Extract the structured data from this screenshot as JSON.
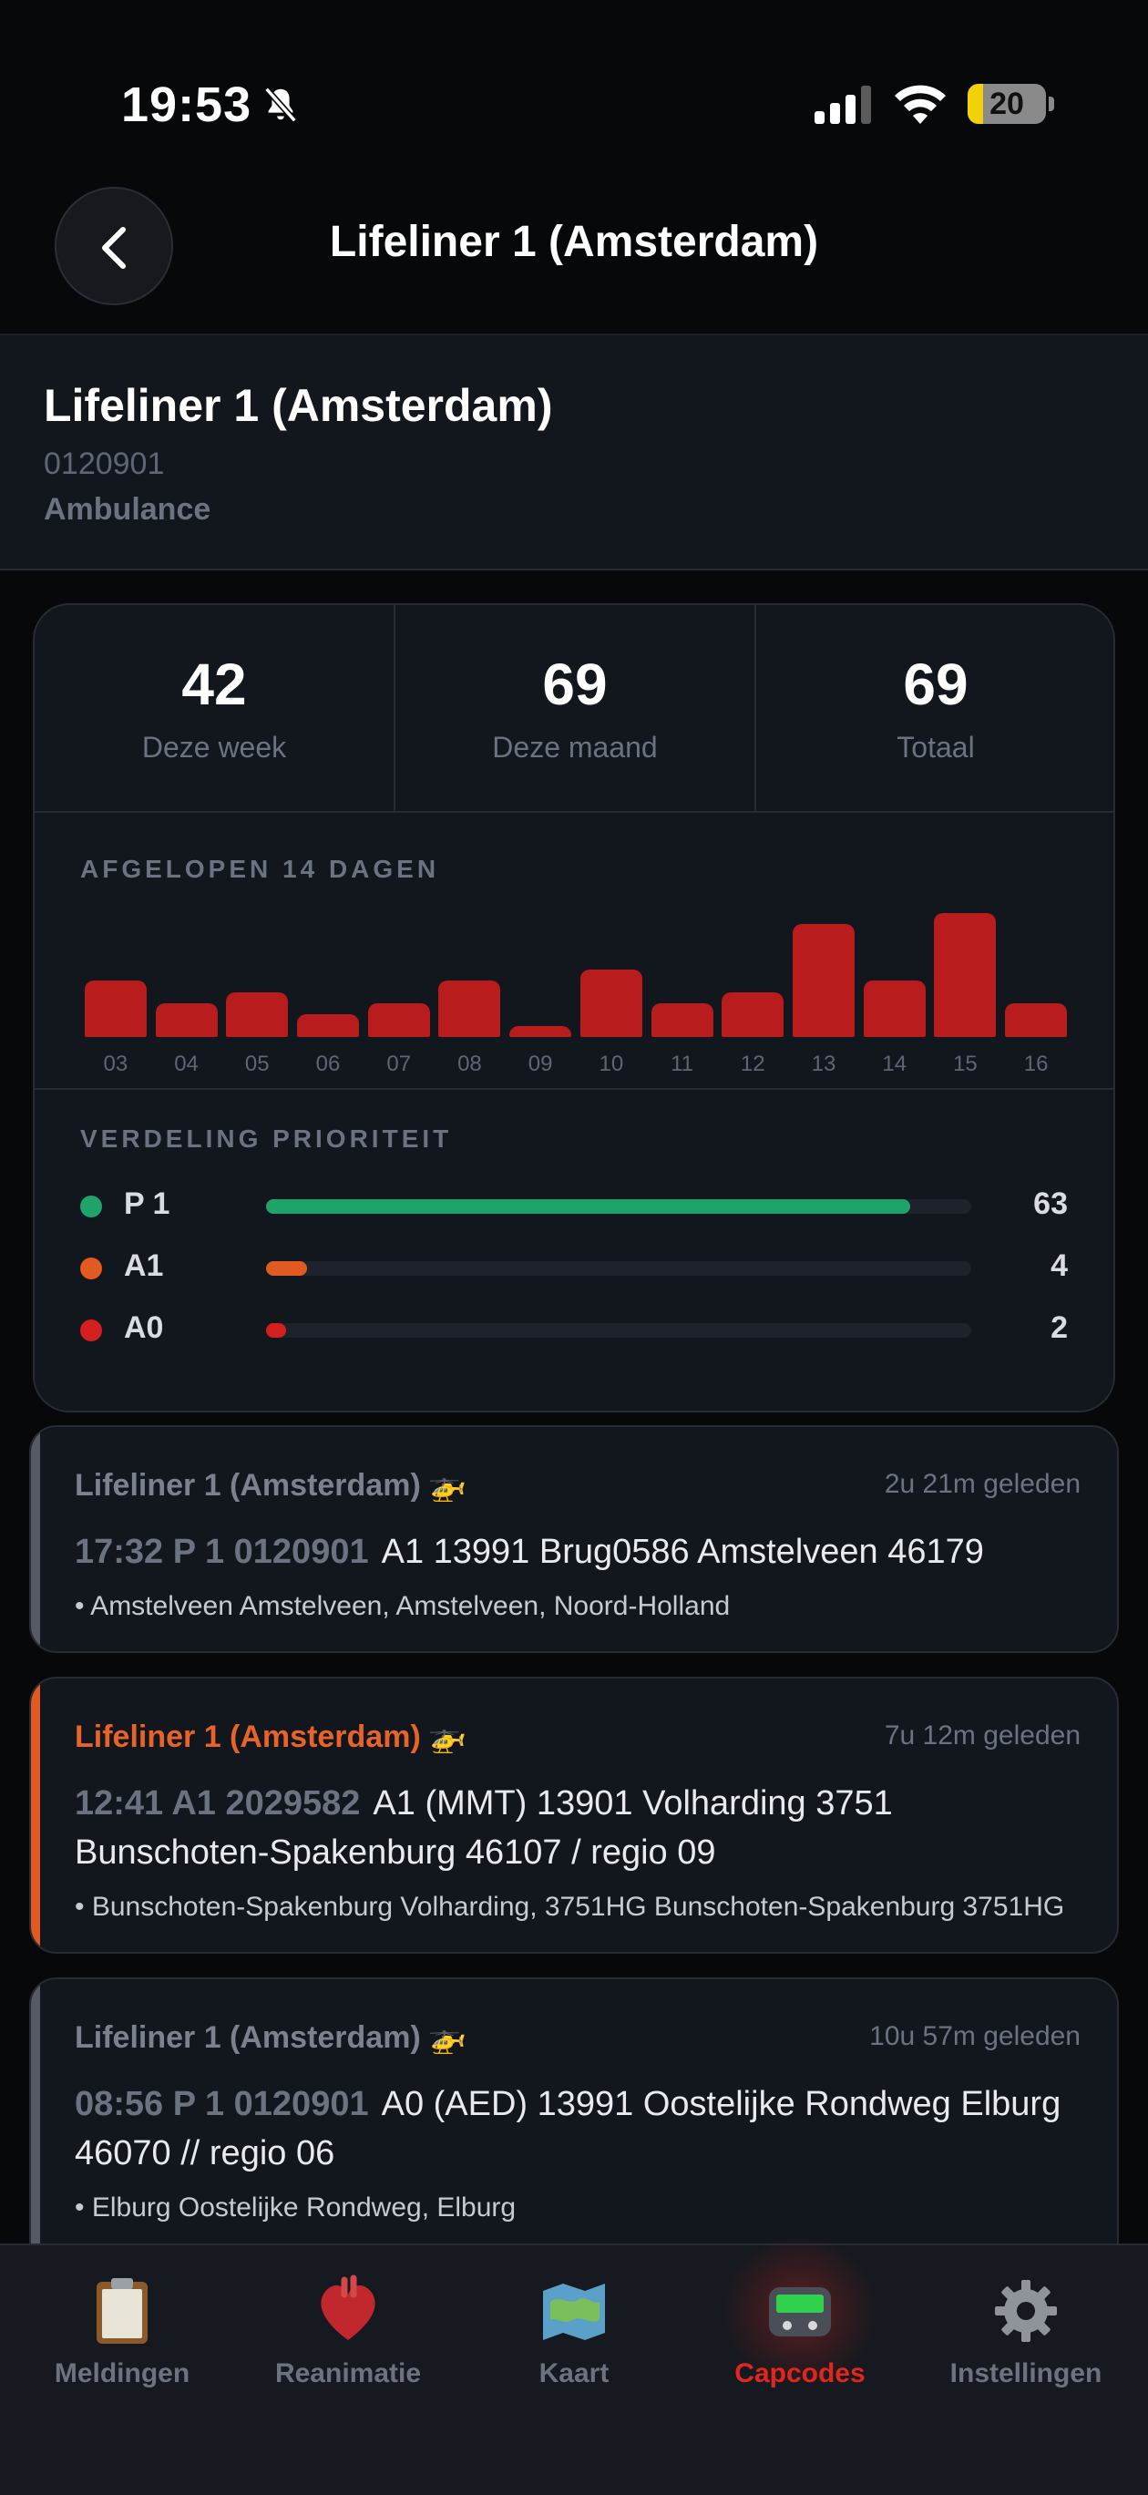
{
  "status_bar": {
    "time": "19:53",
    "battery": "20",
    "battery_level": 0.2
  },
  "nav": {
    "title": "Lifeliner 1 (Amsterdam)"
  },
  "header": {
    "title": "Lifeliner 1 (Amsterdam)",
    "capcode": "0120901",
    "type": "Ambulance"
  },
  "stats": [
    {
      "value": "42",
      "label": "Deze week"
    },
    {
      "value": "69",
      "label": "Deze maand"
    },
    {
      "value": "69",
      "label": "Totaal"
    }
  ],
  "history": {
    "label": "AFGELOPEN 14 DAGEN",
    "days": [
      "03",
      "04",
      "05",
      "06",
      "07",
      "08",
      "09",
      "10",
      "11",
      "12",
      "13",
      "14",
      "15",
      "16"
    ],
    "values": [
      5,
      3,
      4,
      2,
      3,
      5,
      1,
      6,
      3,
      4,
      10,
      5,
      11,
      3
    ],
    "color": "#b81c1c"
  },
  "priority": {
    "label": "VERDELING PRIORITEIT",
    "items": [
      {
        "name": "P 1",
        "count": "63",
        "value": 63,
        "color": "#1fa36a"
      },
      {
        "name": "A1",
        "count": "4",
        "value": 4,
        "color": "#e05a22"
      },
      {
        "name": "A0",
        "count": "2",
        "value": 2,
        "color": "#d41f1f"
      }
    ],
    "max": 69
  },
  "messages": [
    {
      "title": "Lifeliner 1 (Amsterdam)",
      "ago": "2u 21m geleden",
      "code": "17:32  P 1  0120901",
      "text": "A1 13991 Brug0586 Amstelveen 46179",
      "location": "• Amstelveen Amstelveen, Amstelveen, Noord-Holland",
      "accent": "#555a63",
      "title_color": "#7b818d"
    },
    {
      "title": "Lifeliner 1 (Amsterdam)",
      "ago": "7u 12m geleden",
      "code": "12:41  A1  2029582",
      "text": "A1 (MMT) 13901 Volharding 3751 Bunschoten-Spakenburg 46107 / regio 09",
      "location": "• Bunschoten-Spakenburg Volharding, 3751HG Bunschoten-Spakenburg  3751HG",
      "accent": "#e05a22",
      "title_color": "#e8632a"
    },
    {
      "title": "Lifeliner 1 (Amsterdam)",
      "ago": "10u 57m geleden",
      "code": "08:56  P 1  0120901",
      "text": "A0 (AED) 13991 Oostelijke Rondweg Elburg 46070 // regio 06",
      "location": "• Elburg Oostelijke Rondweg, Elburg",
      "accent": "#555a63",
      "title_color": "#7b818d"
    }
  ],
  "tabs": [
    {
      "label": "Meldingen",
      "icon": "clipboard-icon"
    },
    {
      "label": "Reanimatie",
      "icon": "heart-icon"
    },
    {
      "label": "Kaart",
      "icon": "map-icon"
    },
    {
      "label": "Capcodes",
      "icon": "pager-icon",
      "active": true
    },
    {
      "label": "Instellingen",
      "icon": "gear-icon"
    }
  ]
}
